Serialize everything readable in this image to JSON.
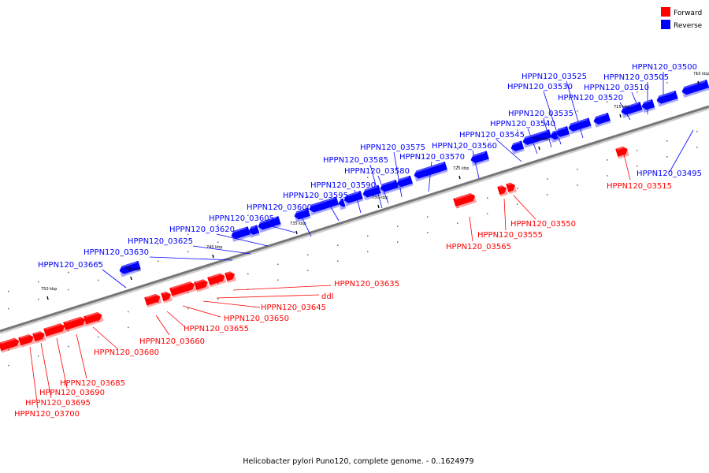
{
  "legend": {
    "forward": {
      "label": "Forward",
      "color": "#ff0000"
    },
    "reverse": {
      "label": "Reverse",
      "color": "#0000ff"
    }
  },
  "caption": "Helicobacter pylori Puno120, complete genome. - 0..1624979",
  "ticks": [
    "710 kbp",
    "715 kbp",
    "720 kbp",
    "725 kbp",
    "730 kbp",
    "735 kbp",
    "740 kbp",
    "745 kbp",
    "750 kbp"
  ],
  "genes_reverse": [
    "HPPN120_03500",
    "HPPN120_03505",
    "HPPN120_03510",
    "HPPN120_03520",
    "HPPN120_03525",
    "HPPN120_03530",
    "HPPN120_03535",
    "HPPN120_03540",
    "HPPN120_03545",
    "HPPN120_03560",
    "HPPN120_03570",
    "HPPN120_03575",
    "HPPN120_03585",
    "HPPN120_03580",
    "HPPN120_03590",
    "HPPN120_03595",
    "HPPN120_03600",
    "HPPN120_03605",
    "HPPN120_03620",
    "HPPN120_03625",
    "HPPN120_03630",
    "HPPN120_03665",
    "HPPN120_03495"
  ],
  "genes_forward": [
    "HPPN120_03515",
    "HPPN120_03550",
    "HPPN120_03555",
    "HPPN120_03565",
    "HPPN120_03635",
    "ddl",
    "HPPN120_03645",
    "HPPN120_03650",
    "HPPN120_03655",
    "HPPN120_03660",
    "HPPN120_03680",
    "HPPN120_03685",
    "HPPN120_03690",
    "HPPN120_03695",
    "HPPN120_03700"
  ]
}
